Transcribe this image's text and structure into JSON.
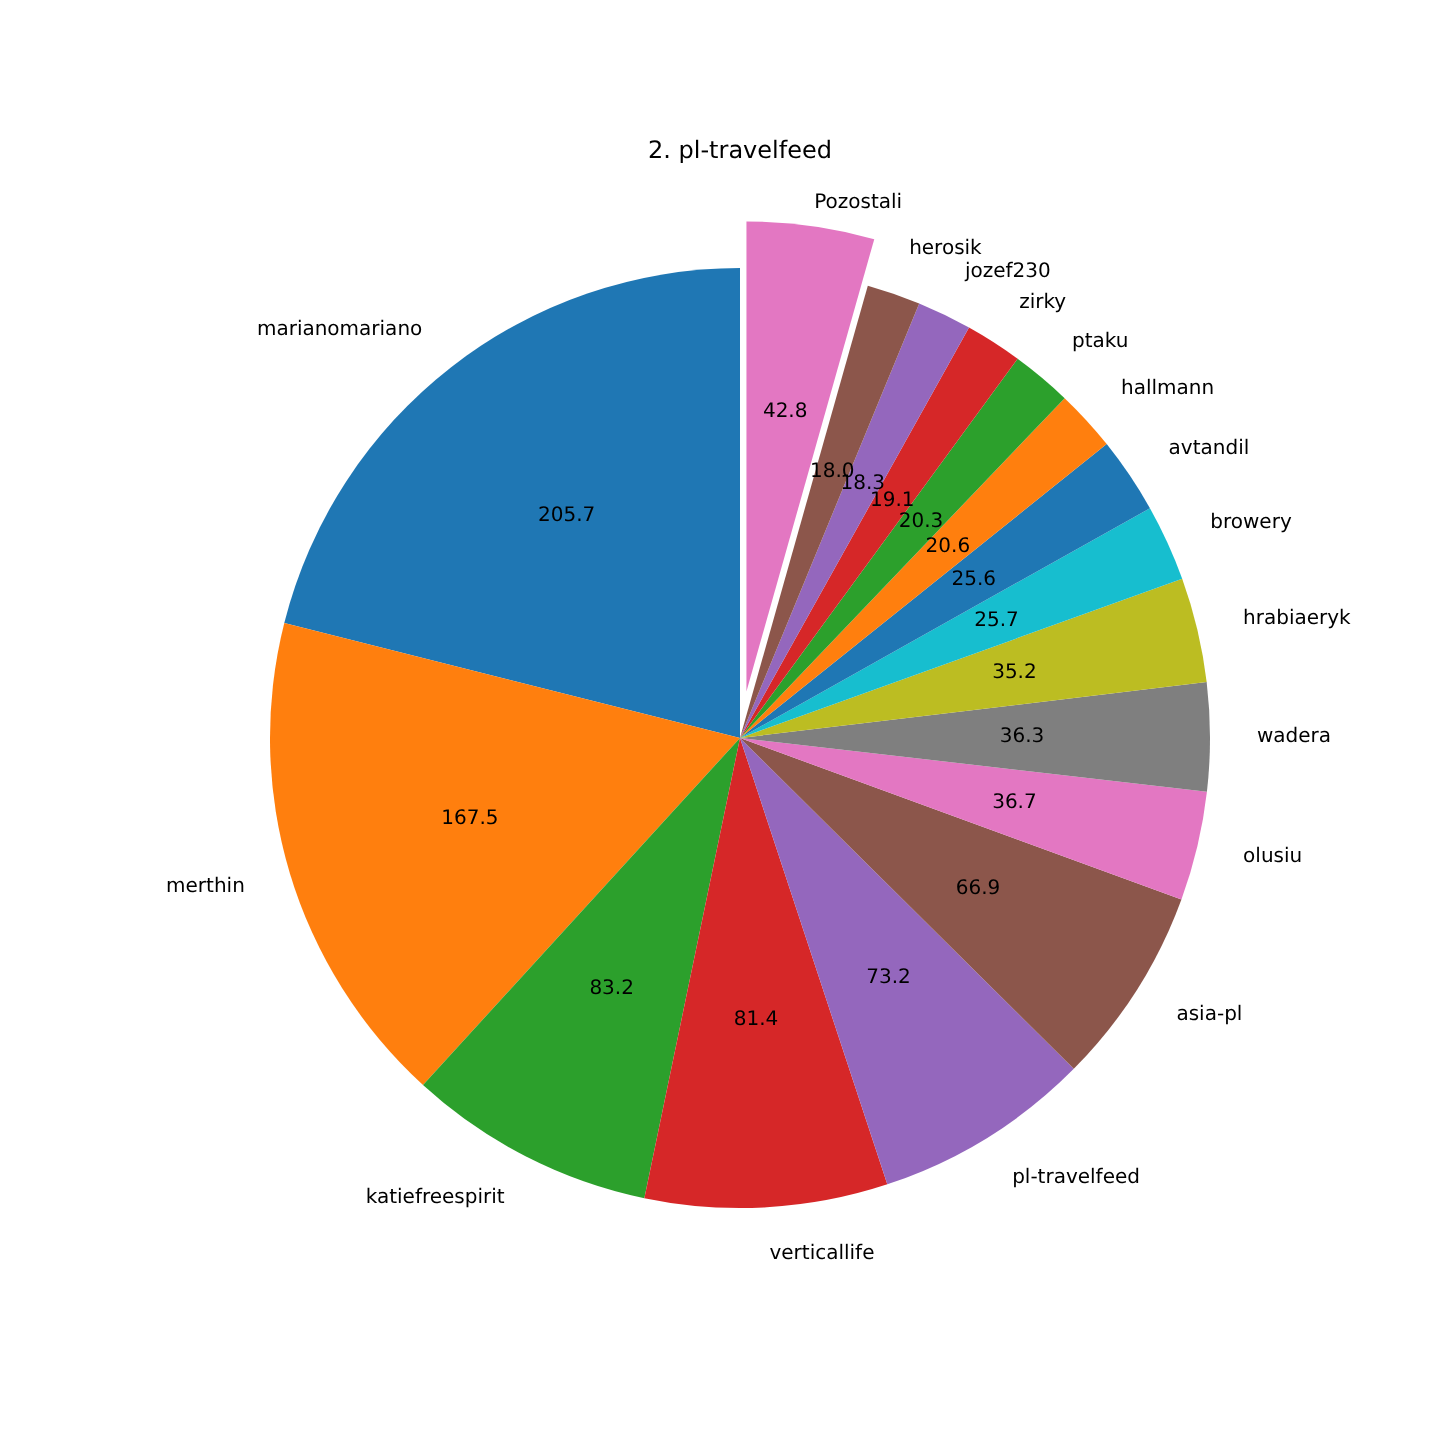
{
  "chart_data": {
    "type": "pie",
    "title": "2. pl-travelfeed",
    "categories": [
      "marianomariano",
      "merthin",
      "katiefreespirit",
      "verticallife",
      "pl-travelfeed",
      "asia-pl",
      "olusiu",
      "wadera",
      "hrabiaeryk",
      "browery",
      "avtandil",
      "hallmann",
      "ptaku",
      "zirky",
      "jozef230",
      "herosik",
      "Pozostali"
    ],
    "values": [
      205.7,
      167.5,
      83.2,
      81.4,
      73.2,
      66.9,
      36.7,
      36.3,
      35.2,
      25.7,
      25.6,
      20.6,
      20.3,
      19.1,
      18.3,
      18.0,
      42.8
    ],
    "value_labels": [
      "205.7",
      "167.5",
      "83.2",
      "81.4",
      "73.2",
      "66.9",
      "36.7",
      "36.3",
      "35.2",
      "25.7",
      "25.6",
      "20.6",
      "20.3",
      "19.1",
      "18.3",
      "18.0",
      "42.8"
    ],
    "colors": [
      "#1f77b4",
      "#ff7f0e",
      "#2ca02c",
      "#d62728",
      "#9467bd",
      "#8c564b",
      "#e377c2",
      "#7f7f7f",
      "#bcbd22",
      "#17becf",
      "#1f77b4",
      "#ff7f0e",
      "#2ca02c",
      "#d62728",
      "#9467bd",
      "#8c564b",
      "#e377c2"
    ]
  }
}
